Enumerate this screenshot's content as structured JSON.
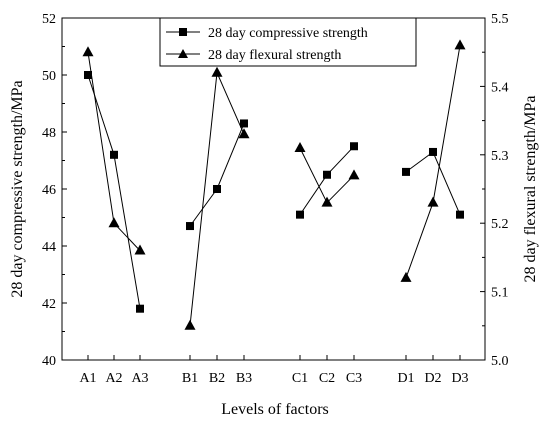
{
  "chart_data": {
    "type": "line",
    "xlabel": "Levels of factors",
    "ylabel_left": "28 day compressive strength/MPa",
    "ylabel_right": "28 day flexural strength/MPa",
    "ylim_left": [
      40,
      52
    ],
    "ylim_right": [
      5.0,
      5.5
    ],
    "yticks_left": [
      "40",
      "42",
      "44",
      "46",
      "48",
      "50",
      "52"
    ],
    "yticks_right": [
      "5.0",
      "5.1",
      "5.2",
      "5.3",
      "5.4",
      "5.5"
    ],
    "categories": [
      "A1",
      "A2",
      "A3",
      "B1",
      "B2",
      "B3",
      "C1",
      "C2",
      "C3",
      "D1",
      "D2",
      "D3"
    ],
    "groups": [
      [
        0,
        1,
        2
      ],
      [
        3,
        4,
        5
      ],
      [
        6,
        7,
        8
      ],
      [
        9,
        10,
        11
      ]
    ],
    "grid": false,
    "legend_position": "top-center",
    "series": [
      {
        "name": "28 day compressive strength",
        "axis": "left",
        "marker": "square",
        "values": [
          50.0,
          47.2,
          41.8,
          44.7,
          46.0,
          48.3,
          45.1,
          46.5,
          47.5,
          46.6,
          47.3,
          45.1
        ]
      },
      {
        "name": "28 day flexural strength",
        "axis": "right",
        "marker": "triangle",
        "values": [
          5.45,
          5.2,
          5.16,
          5.05,
          5.42,
          5.33,
          5.31,
          5.23,
          5.27,
          5.12,
          5.23,
          5.46
        ]
      }
    ]
  }
}
